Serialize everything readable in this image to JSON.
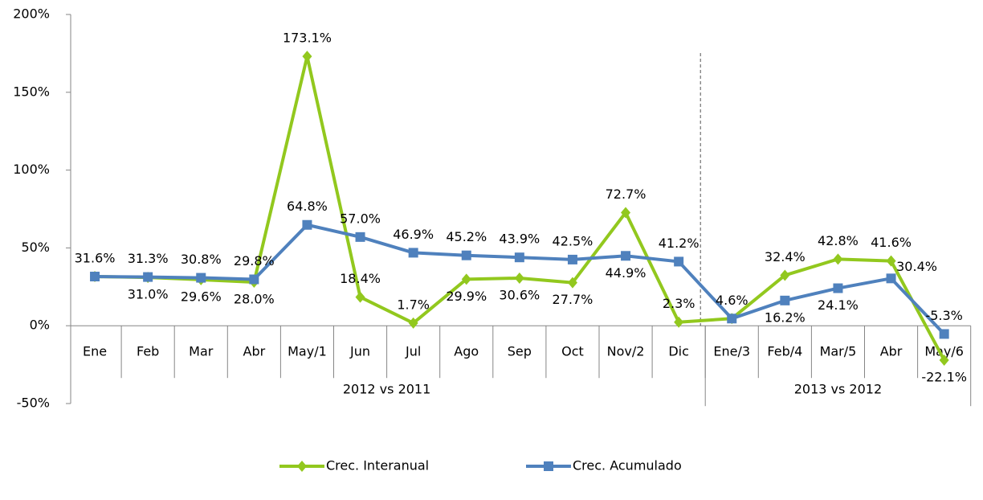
{
  "chart_data": {
    "type": "line",
    "categories": [
      "Ene",
      "Feb",
      "Mar",
      "Abr",
      "May/1",
      "Jun",
      "Jul",
      "Ago",
      "Sep",
      "Oct",
      "Nov/2",
      "Dic",
      "Ene/3",
      "Feb/4",
      "Mar/5",
      "Abr",
      "May/6"
    ],
    "groups": [
      {
        "label": "2012 vs 2011",
        "count": 12
      },
      {
        "label": "2013 vs 2012",
        "count": 5
      }
    ],
    "series": [
      {
        "name": "Crec. Interanual",
        "color": "#92c81e",
        "marker": "diamond",
        "values": [
          31.6,
          31.0,
          29.6,
          28.0,
          173.1,
          18.4,
          1.7,
          29.9,
          30.6,
          27.7,
          72.7,
          2.3,
          4.6,
          32.4,
          42.8,
          41.6,
          -22.1
        ],
        "value_labels": [
          null,
          "31.0%",
          "29.6%",
          "28.0%",
          "173.1%",
          "18.4%",
          "1.7%",
          "29.9%",
          "30.6%",
          "27.7%",
          "72.7%",
          "2.3%",
          null,
          "32.4%",
          "42.8%",
          "41.6%",
          "-22.1%"
        ]
      },
      {
        "name": "Crec. Acumulado",
        "color": "#4f81bd",
        "marker": "square",
        "values": [
          31.6,
          31.3,
          30.8,
          29.8,
          64.8,
          57.0,
          46.9,
          45.2,
          43.9,
          42.5,
          44.9,
          41.2,
          4.6,
          16.2,
          24.1,
          30.4,
          -5.3
        ],
        "value_labels": [
          "31.6%",
          "31.3%",
          "30.8%",
          "29.8%",
          "64.8%",
          "57.0%",
          "46.9%",
          "45.2%",
          "43.9%",
          "42.5%",
          "44.9%",
          "41.2%",
          "4.6%",
          "16.2%",
          "24.1%",
          "30.4%",
          "-5.3%"
        ]
      }
    ],
    "ylim": [
      -50,
      200
    ],
    "yticks": [
      {
        "value": -50,
        "label": "-50%"
      },
      {
        "value": 0,
        "label": "0%"
      },
      {
        "value": 50,
        "label": "50%"
      },
      {
        "value": 100,
        "label": "100%"
      },
      {
        "value": 150,
        "label": "150%"
      },
      {
        "value": 200,
        "label": "200%"
      }
    ],
    "legend": "bottom"
  }
}
